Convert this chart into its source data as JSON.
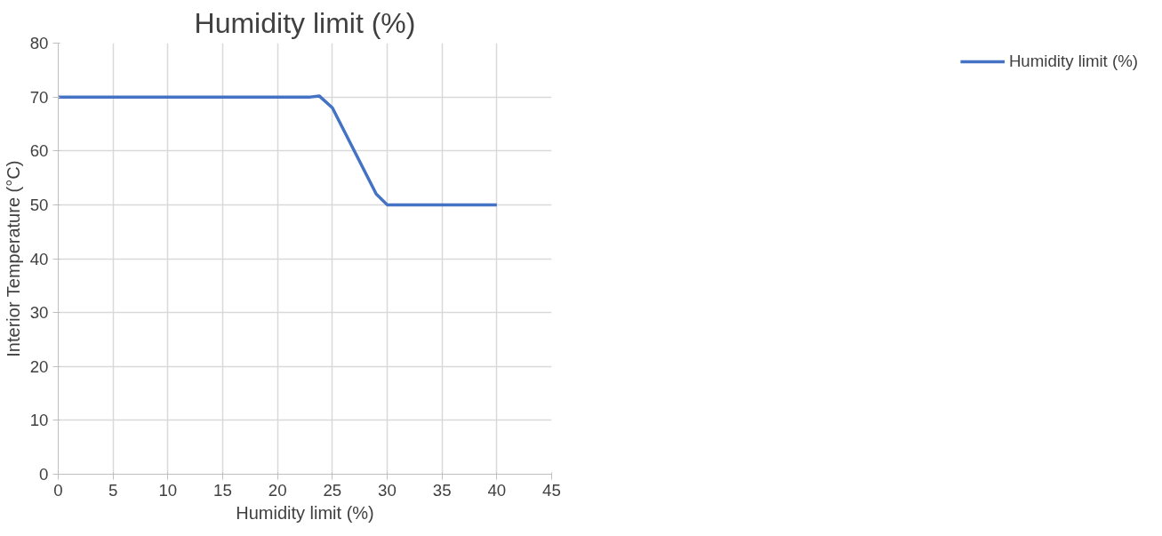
{
  "chart_data": {
    "type": "line",
    "title": "Humidity limit (%)",
    "xlabel": "Humidity limit (%)",
    "ylabel": "Interior Temperature (°C)",
    "series": [
      {
        "name": "Humidity limit (%)",
        "color": "#4472c4",
        "x": [
          0,
          23,
          23.8,
          25,
          26,
          27,
          28,
          29,
          30,
          30.5,
          40
        ],
        "values": [
          70,
          70,
          70.2,
          68,
          64,
          60,
          56,
          52,
          50,
          50,
          50
        ]
      }
    ],
    "xlim": [
      0,
      45
    ],
    "xticks": [
      0,
      5,
      10,
      15,
      20,
      25,
      30,
      35,
      40,
      45
    ],
    "ylim": [
      0,
      80
    ],
    "yticks": [
      0,
      10,
      20,
      30,
      40,
      50,
      60,
      70,
      80
    ],
    "grid": true,
    "legend": "right",
    "marker": "none",
    "line_style": "solid"
  }
}
